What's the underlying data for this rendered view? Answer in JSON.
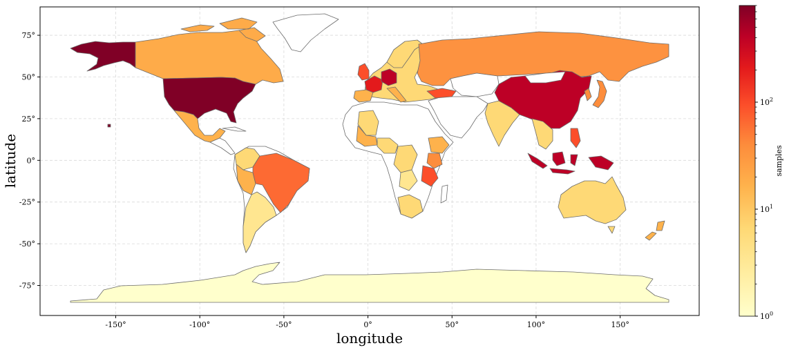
{
  "chart_data": {
    "type": "choropleth",
    "xlabel": "longitude",
    "ylabel": "latitude",
    "xlim": [
      -195,
      197
    ],
    "ylim": [
      -93,
      92
    ],
    "x_ticks": [
      "-150°",
      "-100°",
      "-50°",
      "0°",
      "50°",
      "100°",
      "150°"
    ],
    "y_ticks": [
      "75°",
      "50°",
      "25°",
      "0°",
      "-25°",
      "-50°",
      "-75°"
    ],
    "grid": true,
    "colorbar": {
      "label": "samples",
      "scale": "log",
      "range": [
        1,
        800
      ],
      "ticks": [
        {
          "base": "10",
          "exp": "0",
          "value": 1
        },
        {
          "base": "10",
          "exp": "1",
          "value": 10
        },
        {
          "base": "10",
          "exp": "2",
          "value": 100
        }
      ],
      "colormap": "YlOrRd",
      "stops": [
        "#ffffcc",
        "#ffeda0",
        "#fed976",
        "#feb24c",
        "#fd8d3c",
        "#fc4e2a",
        "#e31a1c",
        "#bd0026",
        "#800026"
      ]
    },
    "regions": [
      {
        "name": "United States",
        "samples": 800
      },
      {
        "name": "Alaska",
        "samples": 800
      },
      {
        "name": "Canada",
        "samples": 22
      },
      {
        "name": "Mexico",
        "samples": 12
      },
      {
        "name": "Brazil",
        "samples": 45
      },
      {
        "name": "Argentina",
        "samples": 6
      },
      {
        "name": "Peru",
        "samples": 10
      },
      {
        "name": "Colombia",
        "samples": 8
      },
      {
        "name": "Russia",
        "samples": 25
      },
      {
        "name": "China",
        "samples": 300
      },
      {
        "name": "Germany",
        "samples": 200
      },
      {
        "name": "France",
        "samples": 100
      },
      {
        "name": "United Kingdom",
        "samples": 60
      },
      {
        "name": "India",
        "samples": 8
      },
      {
        "name": "Indonesia",
        "samples": 250
      },
      {
        "name": "Australia",
        "samples": 5
      },
      {
        "name": "Kenya",
        "samples": 80
      },
      {
        "name": "Tanzania",
        "samples": 80
      },
      {
        "name": "South Africa",
        "samples": 6
      },
      {
        "name": "Antarctica",
        "samples": 1
      },
      {
        "name": "Japan",
        "samples": 20
      },
      {
        "name": "Philippines",
        "samples": 60
      },
      {
        "name": "New Zealand",
        "samples": 10
      }
    ]
  }
}
